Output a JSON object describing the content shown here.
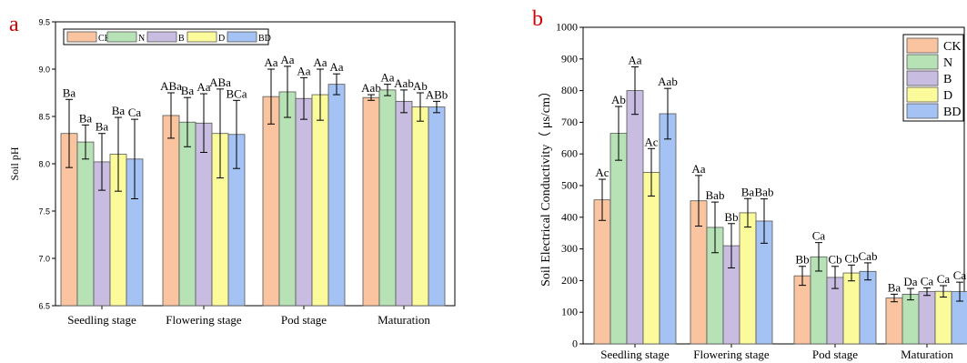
{
  "colors": {
    "CK": "#f9c49f",
    "N": "#b6e2b6",
    "B": "#c8bce0",
    "D": "#fbfb9c",
    "BD": "#a4c2f4"
  },
  "chart_data": [
    {
      "panel": "a",
      "type": "bar",
      "ylabel": "Soil pH",
      "ylim": [
        6.5,
        9.5
      ],
      "yticks": [
        "6.5",
        "7.0",
        "7.5",
        "8.0",
        "8.5",
        "9.0",
        "9.5"
      ],
      "categories": [
        "Seedling stage",
        "Flowering stage",
        "Pod stage",
        "Maturation"
      ],
      "legend": [
        "CK",
        "N",
        "B",
        "D",
        "BD"
      ],
      "legend_position": "top-left",
      "series": [
        {
          "name": "CK",
          "values": [
            8.32,
            8.51,
            8.71,
            8.7
          ],
          "errors": [
            0.36,
            0.24,
            0.29,
            0.03
          ],
          "labels": [
            "Ba",
            "ABa",
            "Aa",
            "Aab"
          ]
        },
        {
          "name": "N",
          "values": [
            8.23,
            8.44,
            8.76,
            8.78
          ],
          "errors": [
            0.18,
            0.26,
            0.27,
            0.06
          ],
          "labels": [
            "Ba",
            "Ba",
            "Aa",
            "Aa"
          ]
        },
        {
          "name": "B",
          "values": [
            8.02,
            8.43,
            8.69,
            8.66
          ],
          "errors": [
            0.3,
            0.31,
            0.22,
            0.12
          ],
          "labels": [
            "Ba",
            "Aa",
            "Aa",
            "Aab"
          ]
        },
        {
          "name": "D",
          "values": [
            8.1,
            8.32,
            8.73,
            8.6
          ],
          "errors": [
            0.39,
            0.47,
            0.27,
            0.15
          ],
          "labels": [
            "Ba",
            "ABa",
            "Aa",
            "Ab"
          ]
        },
        {
          "name": "BD",
          "values": [
            8.05,
            8.31,
            8.84,
            8.6
          ],
          "errors": [
            0.42,
            0.36,
            0.11,
            0.06
          ],
          "labels": [
            "Ca",
            "BCa",
            "Aa",
            "ABb"
          ]
        }
      ]
    },
    {
      "panel": "b",
      "type": "bar",
      "ylabel": "Soil Electrical Conductivity（ μs/cm）",
      "ylim": [
        0,
        1000
      ],
      "yticks": [
        "0",
        "100",
        "200",
        "300",
        "400",
        "500",
        "600",
        "700",
        "800",
        "900",
        "1000"
      ],
      "categories": [
        "Seedling stage",
        "Flowering stage",
        "Pod stage",
        "Maturation"
      ],
      "legend": [
        "CK",
        "N",
        "B",
        "D",
        "BD"
      ],
      "legend_position": "top-right",
      "series": [
        {
          "name": "CK",
          "values": [
            455,
            452,
            215,
            145
          ],
          "errors": [
            65,
            80,
            30,
            12
          ],
          "labels": [
            "Ac",
            "Aa",
            "Bb",
            "Ba"
          ]
        },
        {
          "name": "N",
          "values": [
            665,
            368,
            275,
            157
          ],
          "errors": [
            85,
            80,
            45,
            18
          ],
          "labels": [
            "Ab",
            "Bab",
            "Ca",
            "Da"
          ]
        },
        {
          "name": "B",
          "values": [
            800,
            310,
            210,
            165
          ],
          "errors": [
            75,
            70,
            35,
            12
          ],
          "labels": [
            "Aa",
            "Bb",
            "Cb",
            "Ca"
          ]
        },
        {
          "name": "D",
          "values": [
            542,
            414,
            224,
            166
          ],
          "errors": [
            75,
            45,
            25,
            18
          ],
          "labels": [
            "Ac",
            "Ba",
            "Cb",
            "Ca"
          ]
        },
        {
          "name": "BD",
          "values": [
            727,
            388,
            229,
            165
          ],
          "errors": [
            80,
            70,
            27,
            30
          ],
          "labels": [
            "Aab",
            "Bab",
            "Cab",
            "Ca"
          ]
        }
      ]
    }
  ]
}
